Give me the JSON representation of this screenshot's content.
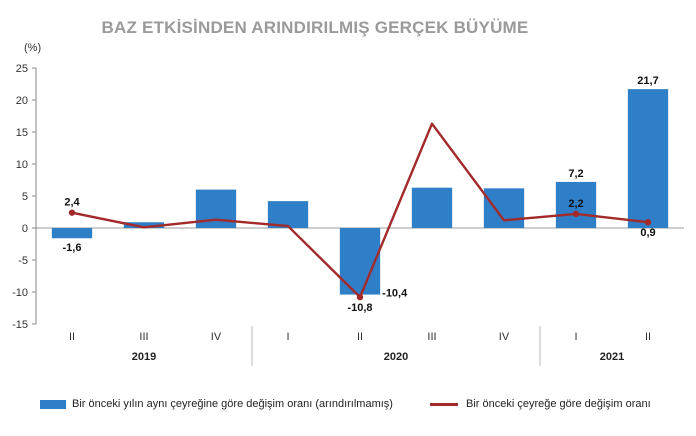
{
  "chart_data": {
    "type": "bar",
    "title": "BAZ ETKİSİNDEN ARINDIRILMIŞ GERÇEK BÜYÜME",
    "unit": "(%)",
    "quarters": [
      "II",
      "III",
      "IV",
      "I",
      "II",
      "III",
      "IV",
      "I",
      "II"
    ],
    "years": [
      {
        "label": "2019",
        "start": 0,
        "end": 2
      },
      {
        "label": "2020",
        "start": 3,
        "end": 6
      },
      {
        "label": "2021",
        "start": 7,
        "end": 8
      }
    ],
    "ylim": [
      -15,
      25
    ],
    "yticks": [
      -15,
      -10,
      -5,
      0,
      5,
      10,
      15,
      20,
      25
    ],
    "series": [
      {
        "name": "Bir önceki yılın aynı çeyreğine göre değişim oranı (arındırılmamış)",
        "kind": "bar",
        "color": "#2f7fc8",
        "values": [
          -1.6,
          0.9,
          6.0,
          4.2,
          -10.4,
          6.3,
          6.2,
          7.2,
          21.7
        ],
        "labels": [
          "-1,6",
          "",
          "",
          "",
          "-10,4",
          "",
          "",
          "7,2",
          "21,7"
        ]
      },
      {
        "name": "Bir önceki çeyreğe göre değişim oranı",
        "kind": "line",
        "color": "#a32a2a",
        "values": [
          2.4,
          0.1,
          1.3,
          0.3,
          -10.8,
          16.3,
          1.2,
          2.2,
          0.9
        ],
        "labels": [
          "2,4",
          "",
          "",
          "",
          "-10,8",
          "",
          "",
          "2,2",
          "0,9"
        ]
      }
    ]
  }
}
